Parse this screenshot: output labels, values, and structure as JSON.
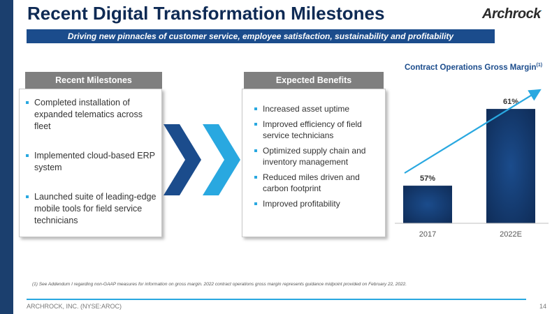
{
  "slide": {
    "title": "Recent Digital Transformation Milestones",
    "banner": "Driving new pinnacles of customer service, employee satisfaction, sustainability and profitability",
    "logo": {
      "text": "Archrock",
      "mark": "."
    }
  },
  "left_panel": {
    "header": "Recent Milestones",
    "items": [
      "Completed installation of expanded telematics across fleet",
      "Implemented cloud-based ERP system",
      "Launched suite of leading-edge mobile tools for field service technicians"
    ]
  },
  "right_panel": {
    "header": "Expected Benefits",
    "items": [
      "Increased asset uptime",
      "Improved efficiency of field service technicians",
      "Optimized supply chain and inventory management",
      "Reduced miles driven and carbon footprint",
      "Improved profitability"
    ]
  },
  "chart_data": {
    "type": "bar",
    "title": "Contract Operations Gross Margin",
    "title_footnote": "(1)",
    "categories": [
      "2017",
      "2022E"
    ],
    "values": [
      57,
      61
    ],
    "value_labels": [
      "57%",
      "61%"
    ],
    "trend_arrow": true,
    "grid": false,
    "colors": {
      "bar": "#1b4c8c",
      "bar_dark": "#0e2a54",
      "arrow": "#29a8e0"
    }
  },
  "footnote": "(1) See Addendum I regarding non-GAAP measures for information on gross margin. 2022 contract operations gross margin represents guidance midpoint provided on February 22, 2022.",
  "footer": {
    "company": "ARCHROCK, INC. (NYSE:AROC)",
    "page": "14"
  },
  "colors": {
    "navy": "#0e2a54",
    "brand_blue": "#1b4c8c",
    "accent_cyan": "#29a8e0",
    "header_gray": "#7f7f7f"
  }
}
